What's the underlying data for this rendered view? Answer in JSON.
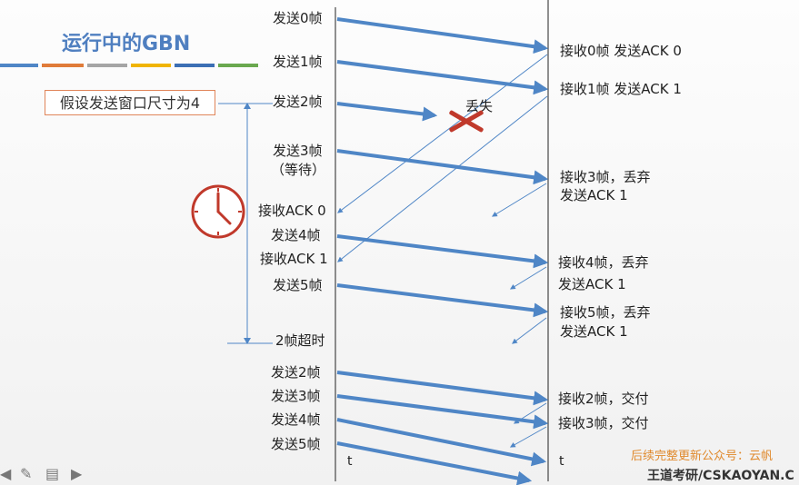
{
  "title": "运行中的GBN",
  "assumption": "假设发送窗口尺寸为4",
  "lost_label": "丢失",
  "time_label": "t",
  "sender_events": [
    {
      "id": "send-0",
      "text": "发送0帧"
    },
    {
      "id": "send-1",
      "text": "发送1帧"
    },
    {
      "id": "send-2",
      "text": "发送2帧"
    },
    {
      "id": "send-3",
      "text": "发送3帧"
    },
    {
      "id": "wait",
      "text": "（等待）"
    },
    {
      "id": "recv-ack0",
      "text": "接收ACK 0"
    },
    {
      "id": "send-4",
      "text": "发送4帧"
    },
    {
      "id": "recv-ack1",
      "text": "接收ACK 1"
    },
    {
      "id": "send-5",
      "text": "发送5帧"
    },
    {
      "id": "timeout",
      "text": "2帧超时"
    },
    {
      "id": "resend-2",
      "text": "发送2帧"
    },
    {
      "id": "resend-3",
      "text": "发送3帧"
    },
    {
      "id": "resend-4",
      "text": "发送4帧"
    },
    {
      "id": "resend-5",
      "text": "发送5帧"
    }
  ],
  "receiver_events": [
    {
      "id": "recv0",
      "lines": [
        "接收0帧 发送ACK 0"
      ]
    },
    {
      "id": "recv1",
      "lines": [
        "接收1帧 发送ACK 1"
      ]
    },
    {
      "id": "recv3",
      "lines": [
        "接收3帧，丢弃",
        "发送ACK 1"
      ]
    },
    {
      "id": "recv4",
      "lines": [
        "接收4帧，丢弃",
        "发送ACK 1"
      ]
    },
    {
      "id": "recv5",
      "lines": [
        "接收5帧，丢弃",
        "发送ACK 1"
      ]
    },
    {
      "id": "recv2b",
      "lines": [
        "接收2帧，交付"
      ]
    },
    {
      "id": "recv3b",
      "lines": [
        "接收3帧，交付"
      ]
    }
  ],
  "footer": {
    "note": "后续完整更新公众号：云帆",
    "brand": "王道考研/CSKAOYAN.C"
  },
  "colors": {
    "arrow": "#4f86c6",
    "ack": "#4f86c6",
    "cross": "#c0392b",
    "clock": "#c0392b",
    "title": "#4f7fc0",
    "bars": [
      "#4f86c6",
      "#e07b39",
      "#a5a5a5",
      "#f0b400",
      "#3c6fb4",
      "#6aa84f"
    ]
  },
  "icons": [
    "clock-icon",
    "back-arrow-icon",
    "pen-icon",
    "slides-icon",
    "forward-arrow-icon"
  ]
}
